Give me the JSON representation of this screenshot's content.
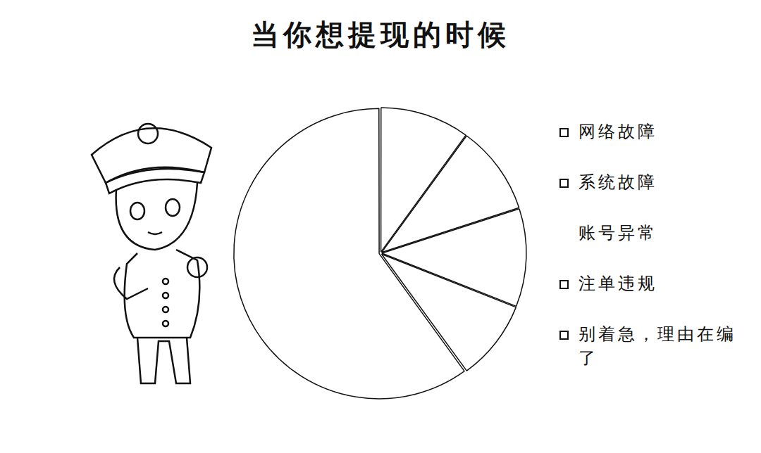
{
  "chart_data": {
    "type": "pie",
    "title": "当你想提现的时候",
    "categories": [
      "网络故障",
      "系统故障",
      "账号异常",
      "注单违规",
      "别着急，理由在编了"
    ],
    "values": [
      10,
      10,
      11,
      9,
      60
    ],
    "colors": [
      "#ffffff",
      "#ffffff",
      "#ffffff",
      "#ffffff",
      "#ffffff"
    ],
    "legend": "right",
    "data_labels": false
  }
}
